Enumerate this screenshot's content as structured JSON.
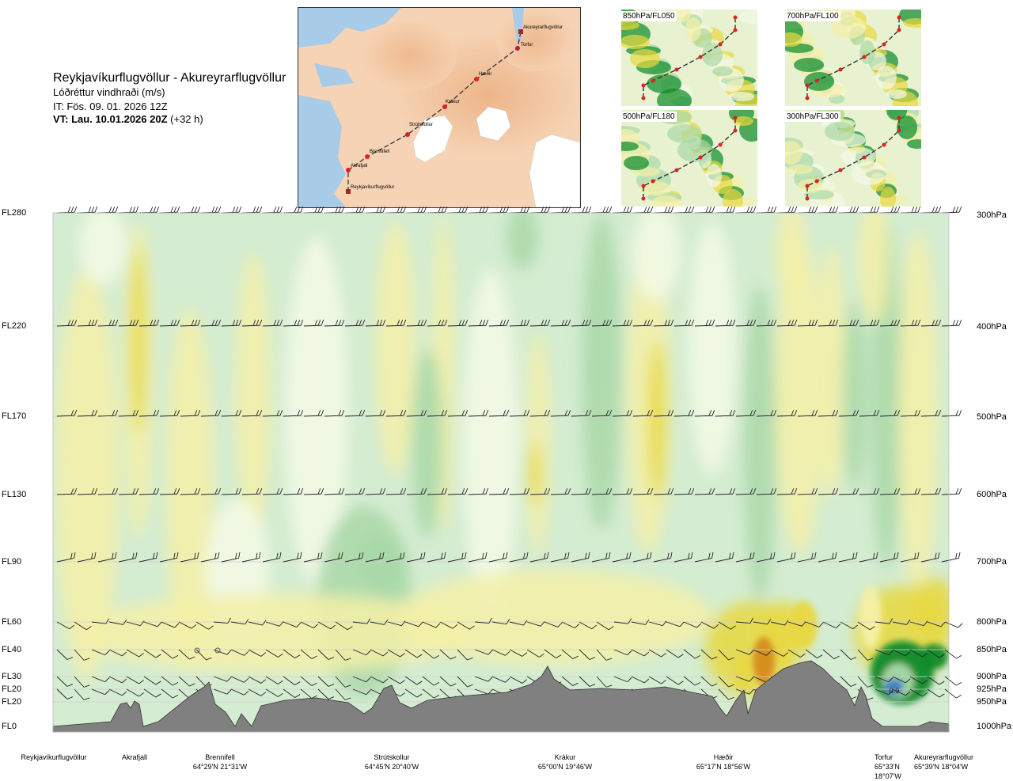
{
  "header": {
    "route": "Reykjavíkurflugvöllur - Akureyrarflugvöllur",
    "quantity": "Lóðréttur vindhraði (m/s)",
    "issue_time": "IT: Fös. 09. 01. 2026 12Z",
    "valid_time_label": "VT: Lau. 10.01.2026 20Z",
    "valid_time_offset": "(+32 h)"
  },
  "map": {
    "points": [
      "Akureyrarflugvöllur",
      "Torfur",
      "Hæðir",
      "Krákur",
      "Strútskollur",
      "Brennifell",
      "Akrafjall",
      "Reykjavíkurflugvöllur"
    ]
  },
  "panels": [
    {
      "label": "850hPa/FL050"
    },
    {
      "label": "700hPa/FL100"
    },
    {
      "label": "500hPa/FL180"
    },
    {
      "label": "300hPa/FL300"
    }
  ],
  "colors": {
    "strong_up": "#0a8a2a",
    "up": "#a9d8a8",
    "weak_up": "#d4ecd1",
    "neutral": "#f4fae8",
    "weak_down": "#f5f0a8",
    "down": "#e8d840",
    "strong_down": "#d68a1a",
    "terrain": "#808080",
    "core": "#3a7cc4"
  },
  "chart_data": {
    "type": "heatmap",
    "title": "Lóðréttur vindhraði (m/s)",
    "y_levels": [
      {
        "fl": "FL280",
        "hpa": "300hPa"
      },
      {
        "fl": "FL220",
        "hpa": "400hPa"
      },
      {
        "fl": "FL170",
        "hpa": "500hPa"
      },
      {
        "fl": "FL130",
        "hpa": "600hPa"
      },
      {
        "fl": "FL90",
        "hpa": "700hPa"
      },
      {
        "fl": "FL60",
        "hpa": "800hPa"
      },
      {
        "fl": "FL40",
        "hpa": "850hPa"
      },
      {
        "fl": "FL30",
        "hpa": "900hPa"
      },
      {
        "fl": "FL20",
        "hpa": "925hPa"
      },
      {
        "fl": "FL20",
        "hpa": "950hPa"
      },
      {
        "fl": "FL0",
        "hpa": "1000hPa"
      }
    ],
    "waypoints": [
      {
        "name": "Reykjavíkurflugvöllur",
        "coord": ""
      },
      {
        "name": "Akrafjall",
        "coord": ""
      },
      {
        "name": "Brennifell",
        "coord": "64°29'N 21°31'W"
      },
      {
        "name": "Strútskollur",
        "coord": "64°45'N 20°40'W"
      },
      {
        "name": "Krákur",
        "coord": "65°00'N 19°46'W"
      },
      {
        "name": "Hæðir",
        "coord": "65°17'N 18°56'W"
      },
      {
        "name": "Torfur",
        "coord": "65°33'N 18°07'W"
      },
      {
        "name": "Akureyrarflugvöllur",
        "coord": "65°39'N 18°04'W"
      }
    ],
    "annotation": "0.9"
  }
}
